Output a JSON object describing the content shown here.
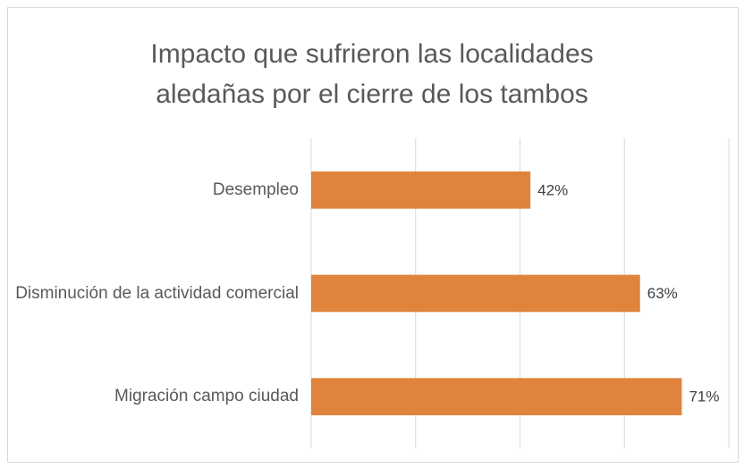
{
  "chart_data": {
    "type": "bar",
    "orientation": "horizontal",
    "title": "Impacto que sufrieron las localidades aledañas por el cierre de los tambos",
    "categories": [
      "Desempleo",
      "Disminución de la actividad comercial",
      "Migración campo ciudad"
    ],
    "values": [
      42,
      63,
      71
    ],
    "value_labels": [
      "42%",
      "63%",
      "71%"
    ],
    "color": "#e0843d",
    "xlim": [
      0,
      80
    ],
    "xticks": [
      0,
      20,
      40,
      60,
      80
    ],
    "grid": true
  }
}
